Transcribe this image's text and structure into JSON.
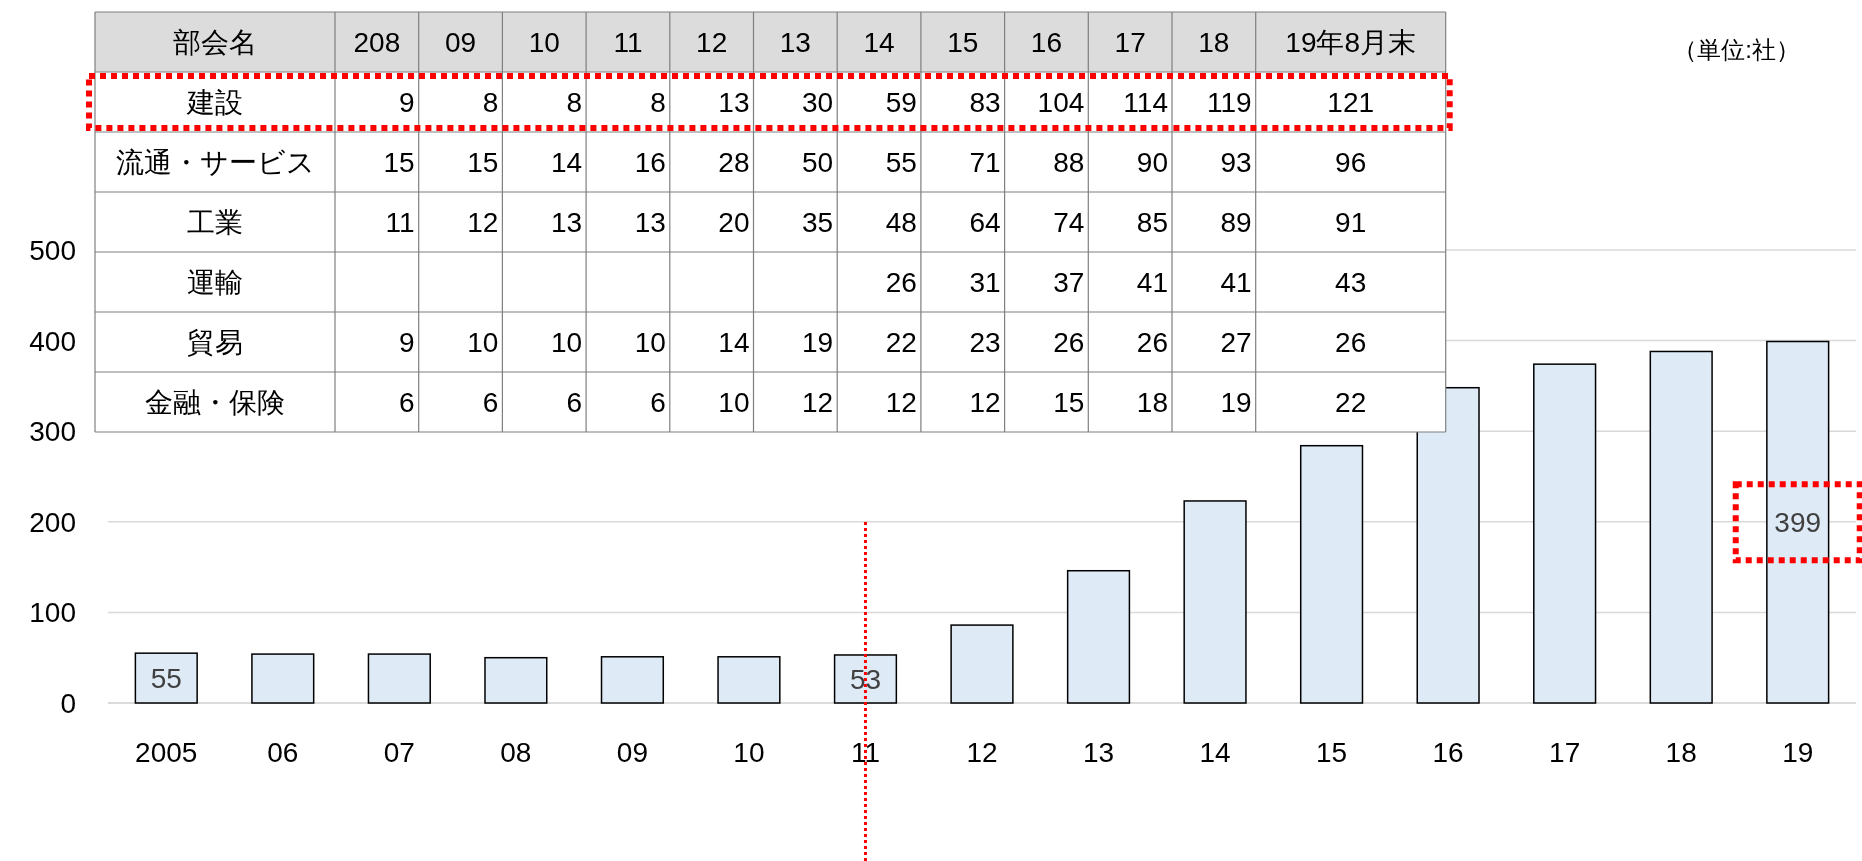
{
  "chart_data": [
    {
      "type": "bar",
      "categories": [
        "2005",
        "06",
        "07",
        "08",
        "09",
        "10",
        "11",
        "12",
        "13",
        "14",
        "15",
        "16",
        "17",
        "18",
        "19"
      ],
      "values": [
        55,
        54,
        54,
        50,
        51,
        51,
        53,
        86,
        146,
        223,
        284,
        348,
        374,
        388,
        399
      ],
      "color": "#deeaf6",
      "value_labels": [
        "55",
        null,
        null,
        null,
        null,
        null,
        "53",
        null,
        null,
        null,
        null,
        null,
        null,
        null,
        "399"
      ],
      "ylim": [
        0,
        500
      ],
      "yticks": [
        0,
        100,
        200,
        300,
        400,
        500
      ],
      "grid": "y",
      "ref_lines": [
        {
          "axis": "x",
          "value": "11",
          "color": "#ff0000",
          "line_style": "dotted"
        }
      ]
    },
    {
      "type": "heatmap",
      "ylabel": "部会名",
      "categories": [
        "208",
        "09",
        "10",
        "11",
        "12",
        "13",
        "14",
        "15",
        "16",
        "17",
        "18",
        "19年8月末"
      ],
      "y_categories": [
        "建設",
        "流通・サービス",
        "工業",
        "運輸",
        "貿易",
        "金融・保険"
      ],
      "cells": [
        [
          9,
          8,
          8,
          8,
          13,
          30,
          59,
          83,
          104,
          114,
          119,
          121
        ],
        [
          15,
          15,
          14,
          16,
          28,
          50,
          55,
          71,
          88,
          90,
          93,
          96
        ],
        [
          11,
          12,
          13,
          13,
          20,
          35,
          48,
          64,
          74,
          85,
          89,
          91
        ],
        [
          null,
          null,
          null,
          null,
          null,
          null,
          26,
          31,
          37,
          41,
          41,
          43
        ],
        [
          9,
          10,
          10,
          10,
          14,
          19,
          22,
          23,
          26,
          26,
          27,
          26
        ],
        [
          6,
          6,
          6,
          6,
          10,
          12,
          12,
          12,
          15,
          18,
          19,
          22
        ]
      ],
      "data_labels": true,
      "annotations": [
        "（単位:社）"
      ]
    }
  ]
}
